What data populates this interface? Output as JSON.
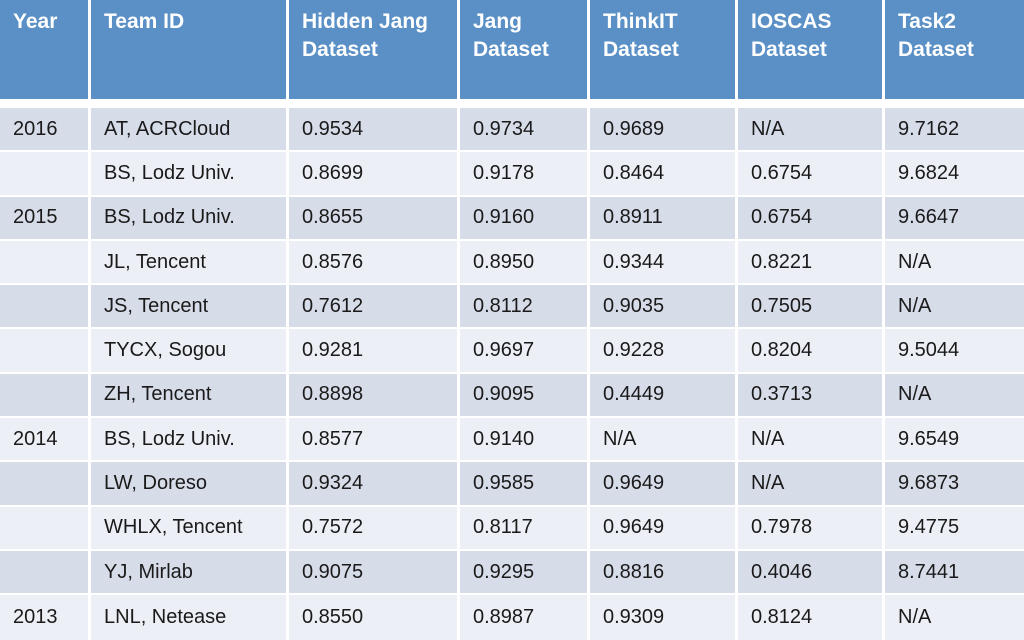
{
  "colors": {
    "header_bg": "#5a90c6",
    "header_text": "#ffffff",
    "row_odd_bg": "#d7dce9",
    "row_even_bg": "#eceff5",
    "body_text": "#1a1a1a",
    "divider": "#ffffff"
  },
  "chart_data": {
    "type": "table",
    "title": "",
    "columns": [
      {
        "key": "year",
        "label": "Year"
      },
      {
        "key": "team",
        "label": "Team ID"
      },
      {
        "key": "hidden_jang",
        "label": "Hidden Jang Dataset"
      },
      {
        "key": "jang",
        "label": "Jang Dataset"
      },
      {
        "key": "thinkit",
        "label": "ThinkIT Dataset"
      },
      {
        "key": "ioscas",
        "label": "IOSCAS Dataset"
      },
      {
        "key": "task2",
        "label": "Task2 Dataset"
      }
    ],
    "rows": [
      {
        "year": "2016",
        "team": "AT, ACRCloud",
        "hidden_jang": "0.9534",
        "jang": "0.9734",
        "thinkit": "0.9689",
        "ioscas": "N/A",
        "task2": "9.7162"
      },
      {
        "year": "",
        "team": "BS, Lodz Univ.",
        "hidden_jang": "0.8699",
        "jang": "0.9178",
        "thinkit": "0.8464",
        "ioscas": "0.6754",
        "task2": "9.6824"
      },
      {
        "year": "2015",
        "team": "BS, Lodz Univ.",
        "hidden_jang": "0.8655",
        "jang": "0.9160",
        "thinkit": "0.8911",
        "ioscas": "0.6754",
        "task2": "9.6647"
      },
      {
        "year": "",
        "team": "JL, Tencent",
        "hidden_jang": "0.8576",
        "jang": "0.8950",
        "thinkit": "0.9344",
        "ioscas": "0.8221",
        "task2": "N/A"
      },
      {
        "year": "",
        "team": "JS, Tencent",
        "hidden_jang": "0.7612",
        "jang": "0.8112",
        "thinkit": "0.9035",
        "ioscas": "0.7505",
        "task2": "N/A"
      },
      {
        "year": "",
        "team": "TYCX, Sogou",
        "hidden_jang": "0.9281",
        "jang": "0.9697",
        "thinkit": "0.9228",
        "ioscas": "0.8204",
        "task2": "9.5044"
      },
      {
        "year": "",
        "team": "ZH, Tencent",
        "hidden_jang": "0.8898",
        "jang": "0.9095",
        "thinkit": "0.4449",
        "ioscas": "0.3713",
        "task2": "N/A"
      },
      {
        "year": "2014",
        "team": "BS, Lodz Univ.",
        "hidden_jang": "0.8577",
        "jang": "0.9140",
        "thinkit": "N/A",
        "ioscas": "N/A",
        "task2": "9.6549"
      },
      {
        "year": "",
        "team": "LW, Doreso",
        "hidden_jang": "0.9324",
        "jang": "0.9585",
        "thinkit": "0.9649",
        "ioscas": "N/A",
        "task2": "9.6873"
      },
      {
        "year": "",
        "team": "WHLX, Tencent",
        "hidden_jang": "0.7572",
        "jang": "0.8117",
        "thinkit": "0.9649",
        "ioscas": "0.7978",
        "task2": "9.4775"
      },
      {
        "year": "",
        "team": "YJ, Mirlab",
        "hidden_jang": "0.9075",
        "jang": "0.9295",
        "thinkit": "0.8816",
        "ioscas": "0.4046",
        "task2": "8.7441"
      },
      {
        "year": "2013",
        "team": "LNL, Netease",
        "hidden_jang": "0.8550",
        "jang": "0.8987",
        "thinkit": "0.9309",
        "ioscas": "0.8124",
        "task2": "N/A"
      }
    ]
  }
}
